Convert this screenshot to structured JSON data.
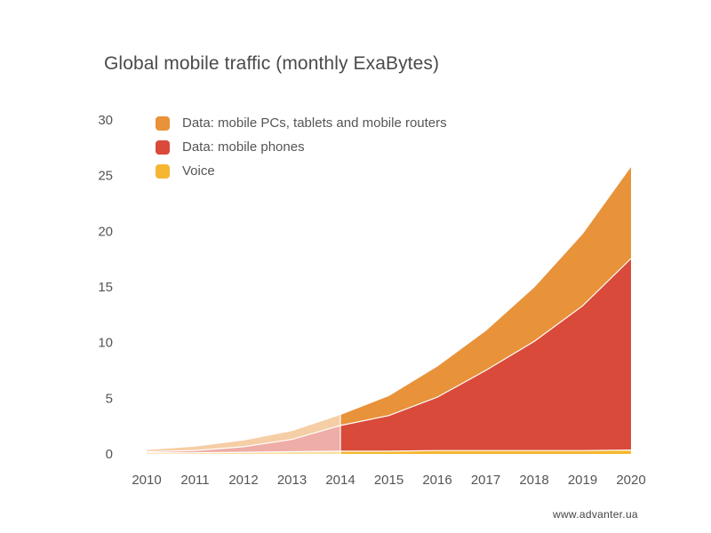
{
  "chart_data": {
    "type": "area",
    "title": "Global mobile traffic (monthly ExaBytes)",
    "xlabel": "",
    "ylabel": "",
    "x": [
      2010,
      2011,
      2012,
      2013,
      2014,
      2015,
      2016,
      2017,
      2018,
      2019,
      2020
    ],
    "x_tick_labels": [
      "2010",
      "2011",
      "2012",
      "2013",
      "2014",
      "2015",
      "2016",
      "2017",
      "2018",
      "2019",
      "2020"
    ],
    "y_ticks": [
      0,
      5,
      10,
      15,
      20,
      25,
      30
    ],
    "y_tick_labels": [
      "0",
      "5",
      "10",
      "15",
      "20",
      "25",
      "30"
    ],
    "ylim": [
      0,
      30
    ],
    "stacked": true,
    "historical_until": 2014,
    "series": [
      {
        "name": "Voice",
        "color": "#f5b731",
        "values": [
          0.1,
          0.1,
          0.15,
          0.2,
          0.25,
          0.25,
          0.3,
          0.3,
          0.3,
          0.3,
          0.35
        ]
      },
      {
        "name": "Data: mobile phones",
        "color": "#d94a3a",
        "values": [
          0.1,
          0.2,
          0.5,
          1.1,
          2.3,
          3.2,
          4.8,
          7.2,
          9.8,
          13.0,
          17.2
        ]
      },
      {
        "name": "Data: mobile PCs, tablets and mobile routers",
        "color": "#e8923a",
        "values": [
          0.2,
          0.4,
          0.6,
          0.8,
          1.0,
          1.8,
          2.8,
          3.6,
          4.9,
          6.5,
          8.3
        ]
      }
    ],
    "legend": {
      "position": "top-left",
      "items": [
        {
          "label": "Data: mobile PCs, tablets and mobile routers",
          "color": "#e8923a"
        },
        {
          "label": "Data: mobile phones",
          "color": "#d94a3a"
        },
        {
          "label": "Voice",
          "color": "#f5b731"
        }
      ]
    }
  },
  "watermark": "www.advanter.ua"
}
